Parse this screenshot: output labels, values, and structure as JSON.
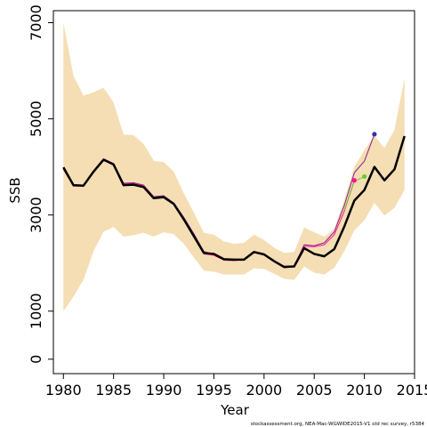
{
  "chart_data": {
    "type": "line",
    "title": "",
    "xlabel": "Year",
    "ylabel": "SSB",
    "xlim": [
      1979,
      2015
    ],
    "ylim": [
      -300,
      7250
    ],
    "x_ticks": [
      1980,
      1985,
      1990,
      1995,
      2000,
      2005,
      2010,
      2015
    ],
    "y_ticks": [
      0,
      1000,
      3000,
      5000,
      7000
    ],
    "grid": false,
    "legend": "none",
    "footnote": "stockassessment.org,  NEA-Mac-WGWIDE2015-V1  old  rec  survey,  r5384",
    "band": {
      "name": "confidence-interval",
      "color": "#f5deb3",
      "x": [
        1980,
        1981,
        1982,
        1983,
        1984,
        1985,
        1986,
        1987,
        1988,
        1989,
        1990,
        1991,
        1992,
        1993,
        1994,
        1995,
        1996,
        1997,
        1998,
        1999,
        2000,
        2001,
        2002,
        2003,
        2004,
        2005,
        2006,
        2007,
        2008,
        2009,
        2010,
        2011,
        2012,
        2013,
        2014
      ],
      "lower": [
        1000,
        1300,
        1650,
        2250,
        2650,
        2750,
        2550,
        2580,
        2630,
        2550,
        2640,
        2600,
        2400,
        2120,
        1840,
        1820,
        1760,
        1760,
        1760,
        1890,
        1880,
        1780,
        1670,
        1650,
        1930,
        1800,
        1760,
        1900,
        2250,
        2680,
        2890,
        3250,
        2990,
        3150,
        3520
      ],
      "upper": [
        7000,
        5900,
        5480,
        5550,
        5650,
        5340,
        4670,
        4660,
        4480,
        4130,
        4100,
        3900,
        3450,
        3050,
        2630,
        2590,
        2450,
        2400,
        2420,
        2590,
        2480,
        2320,
        2210,
        2230,
        2740,
        2640,
        2550,
        2710,
        3320,
        4000,
        4350,
        4650,
        4390,
        4770,
        5850
      ]
    },
    "series": [
      {
        "name": "final-estimate",
        "color": "#000000",
        "stroke_width": 2.5,
        "x": [
          1980,
          1981,
          1982,
          1983,
          1984,
          1985,
          1986,
          1987,
          1988,
          1989,
          1990,
          1991,
          1992,
          1993,
          1994,
          1995,
          1996,
          1997,
          1998,
          1999,
          2000,
          2001,
          2002,
          2003,
          2004,
          2005,
          2006,
          2007,
          2008,
          2009,
          2010,
          2011,
          2012,
          2013,
          2014
        ],
        "values": [
          3990,
          3620,
          3610,
          3900,
          4150,
          4050,
          3620,
          3630,
          3580,
          3350,
          3370,
          3230,
          2910,
          2560,
          2210,
          2190,
          2080,
          2070,
          2070,
          2230,
          2180,
          2040,
          1920,
          1930,
          2310,
          2190,
          2140,
          2290,
          2760,
          3300,
          3520,
          4000,
          3720,
          3950,
          4640
        ]
      },
      {
        "name": "peel-purple",
        "color": "#8b1a8b",
        "stroke_width": 1,
        "x": [
          1980,
          1981,
          1982,
          1983,
          1984,
          1985,
          1986,
          1987,
          1988,
          1989,
          1990,
          1991,
          1992,
          1993,
          1994,
          1995,
          1996,
          1997,
          1998,
          1999,
          2000,
          2001,
          2002,
          2003,
          2004,
          2005,
          2006,
          2007,
          2008,
          2009,
          2010,
          2011
        ],
        "values": [
          3960,
          3620,
          3610,
          3920,
          4170,
          4070,
          3660,
          3670,
          3620,
          3380,
          3400,
          3250,
          2950,
          2610,
          2240,
          2180,
          2080,
          2070,
          2080,
          2240,
          2190,
          2050,
          1930,
          1940,
          2380,
          2360,
          2420,
          2650,
          3200,
          3880,
          4120,
          4680
        ]
      },
      {
        "name": "peel-pink",
        "color": "#ff1493",
        "stroke_width": 1,
        "x": [
          1980,
          1981,
          1982,
          1983,
          1984,
          1985,
          1986,
          1987,
          1988,
          1989,
          1990,
          1991,
          1992,
          1993,
          1994,
          1995,
          1996,
          1997,
          1998,
          1999,
          2000,
          2001,
          2002,
          2003,
          2004,
          2005,
          2006,
          2007,
          2008,
          2009
        ],
        "values": [
          3950,
          3600,
          3600,
          3910,
          4150,
          4060,
          3650,
          3650,
          3610,
          3360,
          3380,
          3230,
          2930,
          2590,
          2190,
          2160,
          2060,
          2050,
          2070,
          2220,
          2170,
          2030,
          1900,
          1920,
          2350,
          2340,
          2380,
          2590,
          3080,
          3720
        ]
      },
      {
        "name": "peel-green",
        "color": "#66cc33",
        "stroke_width": 1,
        "x": [
          2008,
          2009,
          2010
        ],
        "values": [
          3100,
          3700,
          3800
        ]
      }
    ],
    "end_points": [
      {
        "x": 2009,
        "value": 3720,
        "color": "#ff1493"
      },
      {
        "x": 2010,
        "value": 3800,
        "color": "#66cc33"
      },
      {
        "x": 2011,
        "value": 4680,
        "color": "#3333aa"
      }
    ]
  }
}
